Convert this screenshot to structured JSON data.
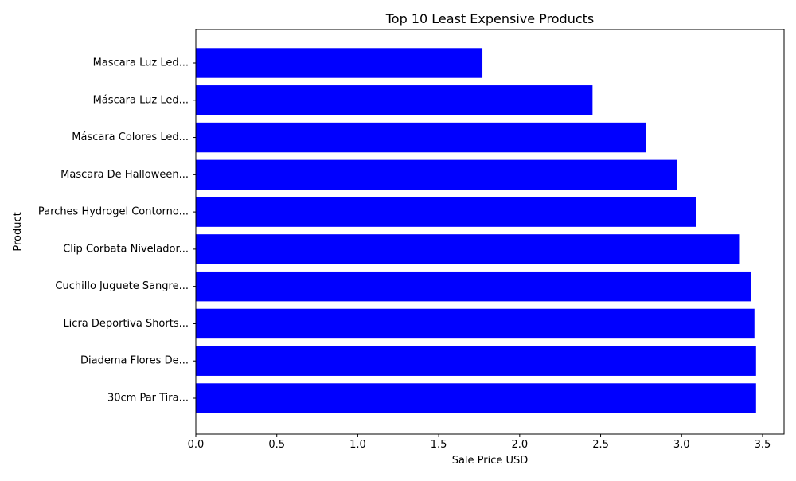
{
  "chart_data": {
    "type": "bar",
    "orientation": "horizontal",
    "title": "Top 10 Least Expensive Products",
    "xlabel": "Sale Price USD",
    "ylabel": "Product",
    "categories": [
      "Mascara Luz Led...",
      "Máscara Luz Led...",
      "Máscara Colores Led...",
      "Mascara De Halloween...",
      "Parches Hydrogel Contorno...",
      "Clip Corbata Nivelador...",
      "Cuchillo Juguete Sangre...",
      "Licra Deportiva Shorts...",
      "Diadema Flores De...",
      "30cm Par Tira..."
    ],
    "values": [
      1.77,
      2.45,
      2.78,
      2.97,
      3.09,
      3.36,
      3.43,
      3.45,
      3.46,
      3.46
    ],
    "xlim": [
      0,
      3.633
    ],
    "xticks": [
      "0.0",
      "0.5",
      "1.0",
      "1.5",
      "2.0",
      "2.5",
      "3.0",
      "3.5"
    ],
    "grid": false,
    "bar_color": "#0000ff"
  }
}
